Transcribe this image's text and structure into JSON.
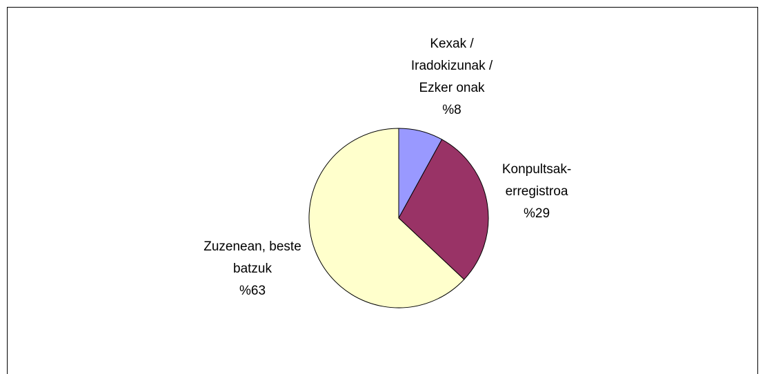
{
  "chart_data": {
    "type": "pie",
    "categories": [
      [
        "Kexak /",
        "Iradokizunak /",
        "Ezker onak"
      ],
      [
        "Konpultsak-",
        "erregistroa"
      ],
      [
        "Zuzenean, beste",
        "batzuk"
      ]
    ],
    "values": [
      8,
      29,
      63
    ],
    "value_labels": [
      "%8",
      "%29",
      "%63"
    ],
    "colors": [
      "#9999ff",
      "#993366",
      "#ffffcc"
    ]
  }
}
